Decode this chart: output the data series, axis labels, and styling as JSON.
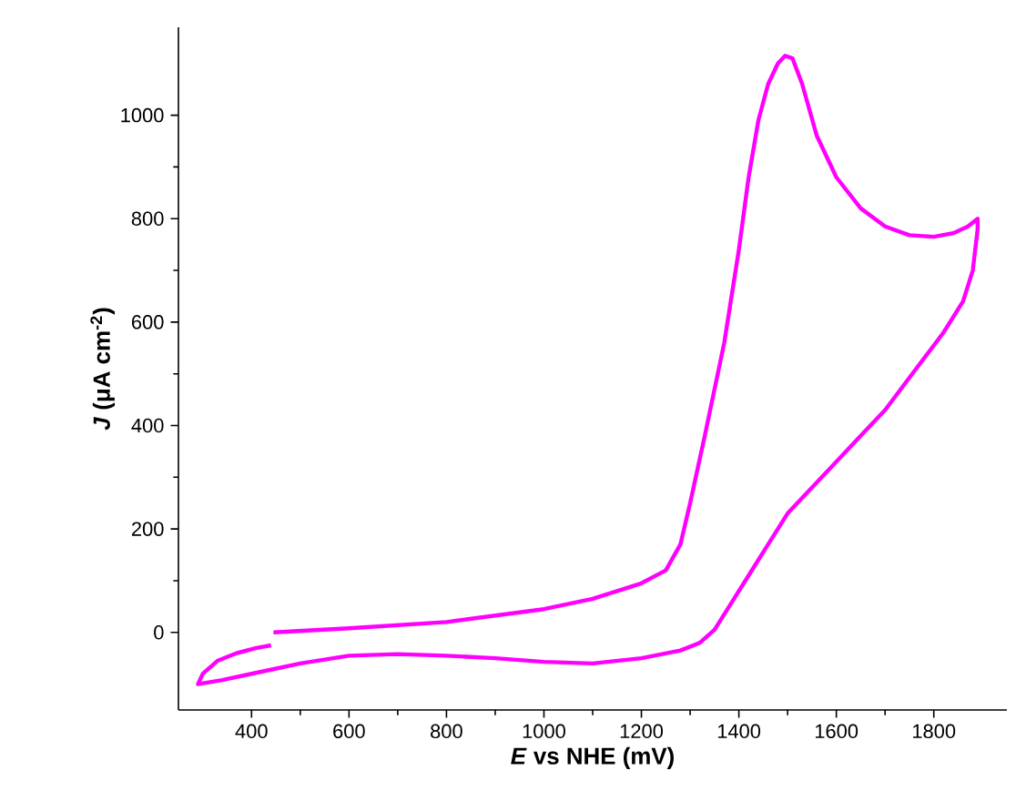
{
  "chart_data": {
    "type": "line",
    "xlabel": "*E* vs NHE (mV)",
    "ylabel": "*J* (μA cm$^{-2}$)",
    "x": [
      445,
      600,
      800,
      1000,
      1100,
      1200,
      1250,
      1280,
      1300,
      1330,
      1370,
      1400,
      1420,
      1440,
      1460,
      1480,
      1495,
      1510,
      1530,
      1560,
      1600,
      1650,
      1700,
      1750,
      1800,
      1840,
      1870,
      1890,
      1890,
      1880,
      1860,
      1820,
      1780,
      1740,
      1700,
      1650,
      1600,
      1550,
      1500,
      1460,
      1420,
      1380,
      1350,
      1320,
      1280,
      1200,
      1100,
      1000,
      900,
      800,
      700,
      600,
      500,
      400,
      340,
      290,
      300,
      330,
      370,
      410,
      440
    ],
    "values": [
      0,
      8,
      20,
      45,
      65,
      95,
      120,
      170,
      250,
      380,
      560,
      740,
      880,
      990,
      1060,
      1100,
      1115,
      1110,
      1060,
      960,
      880,
      820,
      785,
      768,
      765,
      772,
      785,
      800,
      780,
      700,
      640,
      580,
      530,
      480,
      430,
      380,
      330,
      280,
      230,
      170,
      110,
      50,
      5,
      -20,
      -35,
      -50,
      -60,
      -57,
      -50,
      -45,
      -42,
      -45,
      -60,
      -80,
      -92,
      -100,
      -80,
      -55,
      -40,
      -30,
      -25
    ],
    "color": "#ff00ff",
    "line_style": "solid",
    "xlim": [
      250,
      1950
    ],
    "ylim": [
      -150,
      1170
    ],
    "xticks": [
      400,
      600,
      800,
      1000,
      1200,
      1400,
      1600,
      1800
    ],
    "yticks": [
      0,
      200,
      400,
      600,
      800,
      1000
    ]
  }
}
